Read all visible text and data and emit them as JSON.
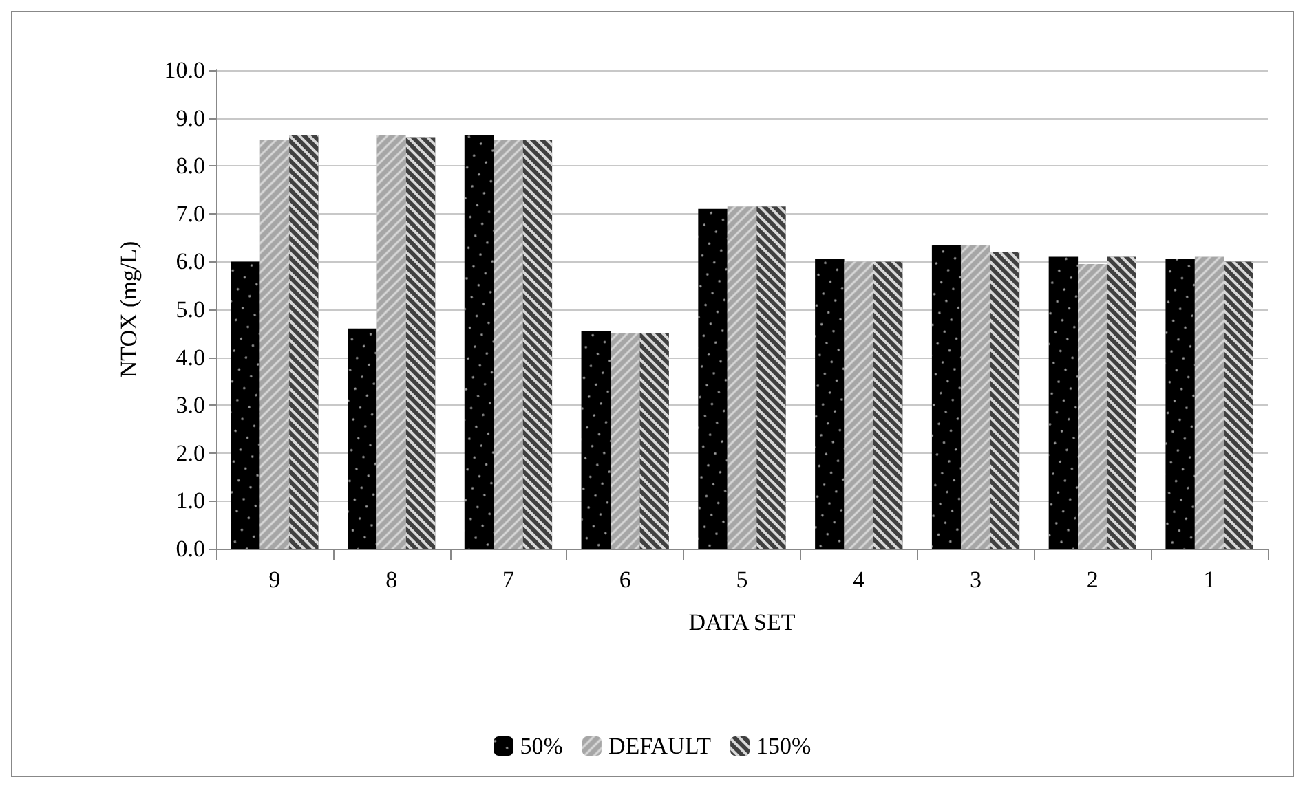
{
  "chart_data": {
    "type": "bar",
    "xlabel": "DATA SET",
    "ylabel": "NTOX (mg/L)",
    "categories": [
      "9",
      "8",
      "7",
      "6",
      "5",
      "4",
      "3",
      "2",
      "1"
    ],
    "series": [
      {
        "name": "50%",
        "color": "#000000",
        "values": [
          6.0,
          4.6,
          8.65,
          4.55,
          7.1,
          6.05,
          6.35,
          6.1,
          6.05
        ]
      },
      {
        "name": "DEFAULT",
        "color": "#a6a6a6",
        "values": [
          8.55,
          8.65,
          8.55,
          4.5,
          7.15,
          6.0,
          6.35,
          5.95,
          6.1
        ]
      },
      {
        "name": "150%",
        "color": "#404040",
        "values": [
          8.65,
          8.6,
          8.55,
          4.5,
          7.15,
          6.0,
          6.2,
          6.1,
          6.0
        ]
      }
    ],
    "ylim": [
      0,
      10
    ],
    "yticks": [
      {
        "value": 0,
        "label": "0.0"
      },
      {
        "value": 1,
        "label": "1.0"
      },
      {
        "value": 2,
        "label": "2.0"
      },
      {
        "value": 3,
        "label": "3.0"
      },
      {
        "value": 4,
        "label": "4.0"
      },
      {
        "value": 5,
        "label": "5.0"
      },
      {
        "value": 6,
        "label": "6.0"
      },
      {
        "value": 7,
        "label": "7.0"
      },
      {
        "value": 8,
        "label": "8.0"
      },
      {
        "value": 9,
        "label": "9.0"
      },
      {
        "value": 10,
        "label": "10.0"
      }
    ],
    "grid": "y",
    "legend": "bottom"
  }
}
